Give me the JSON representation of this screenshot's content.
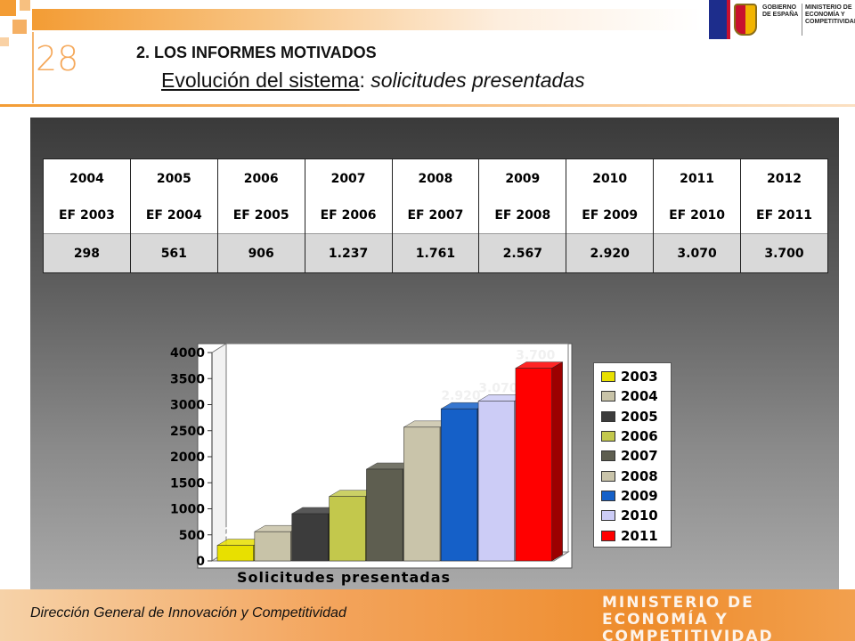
{
  "header": {
    "slide_number": "28",
    "section_title": "2. LOS INFORMES MOTIVADOS",
    "subtitle_part1": "Evolución del sistema",
    "subtitle_sep": ": ",
    "subtitle_part2": "solicitudes presentadas"
  },
  "logo": {
    "left_text": "GOBIERNO DE ESPAÑA",
    "right_text": "MINISTERIO DE ECONOMÍA Y COMPETITIVIDAD"
  },
  "table": {
    "years": [
      "2004",
      "2005",
      "2006",
      "2007",
      "2008",
      "2009",
      "2010",
      "2011",
      "2012"
    ],
    "fiscal": [
      "EF 2003",
      "EF 2004",
      "EF 2005",
      "EF 2006",
      "EF 2007",
      "EF 2008",
      "EF 2009",
      "EF 2010",
      "EF 2011"
    ],
    "values": [
      "298",
      "561",
      "906",
      "1.237",
      "1.761",
      "2.567",
      "2.920",
      "3.070",
      "3.700"
    ]
  },
  "chart_data": {
    "type": "bar",
    "categories": [
      "2003",
      "2004",
      "2005",
      "2006",
      "2007",
      "2008",
      "2009",
      "2010",
      "2011"
    ],
    "values": [
      298,
      561,
      906,
      1237,
      1761,
      2567,
      2920,
      3070,
      3700
    ],
    "data_labels": [
      "298",
      "561",
      "906",
      "1237",
      "1761",
      "2567",
      "2.920",
      "3.070",
      "3.700"
    ],
    "xlabel": "Solicitudes presentadas",
    "ylabel": "",
    "ylim": [
      0,
      4000
    ],
    "yticks": [
      0,
      500,
      1000,
      1500,
      2000,
      2500,
      3000,
      3500,
      4000
    ],
    "legend": [
      "2003",
      "2004",
      "2005",
      "2006",
      "2007",
      "2008",
      "2009",
      "2010",
      "2011"
    ],
    "legend_position": "right",
    "colors": [
      "#e8e000",
      "#c8c3a8",
      "#3c3c3c",
      "#c3c84c",
      "#5e5e50",
      "#c9c4aa",
      "#1560c8",
      "#ccccf6",
      "#ff0000"
    ],
    "side_colors": [
      "#9e9a00",
      "#8d8977",
      "#1a1a1a",
      "#8a8e30",
      "#3a3a30",
      "#8e8a76",
      "#0c3c80",
      "#8e8eb4",
      "#9c0000"
    ]
  },
  "footer": {
    "text": "Dirección General de Innovación y Competitividad",
    "logo_text": "MINISTERIO DE ECONOMÍA Y COMPETITIVIDAD"
  }
}
